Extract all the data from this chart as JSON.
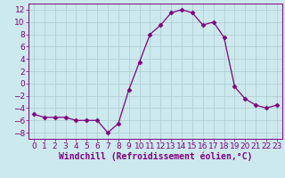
{
  "x": [
    0,
    1,
    2,
    3,
    4,
    5,
    6,
    7,
    8,
    9,
    10,
    11,
    12,
    13,
    14,
    15,
    16,
    17,
    18,
    19,
    20,
    21,
    22,
    23
  ],
  "y": [
    -5,
    -5.5,
    -5.5,
    -5.5,
    -6,
    -6,
    -6,
    -8,
    -6.5,
    -1,
    3.5,
    8,
    9.5,
    11.5,
    12,
    11.5,
    9.5,
    10,
    7.5,
    -0.5,
    -2.5,
    -3.5,
    -4,
    -3.5
  ],
  "line_color": "#800080",
  "marker": "D",
  "marker_size": 2.5,
  "bg_color": "#cce9ed",
  "grid_color": "#aacccc",
  "xlabel": "Windchill (Refroidissement éolien,°C)",
  "xlabel_fontsize": 7,
  "tick_fontsize": 6.5,
  "ylim": [
    -9,
    13
  ],
  "xlim": [
    -0.5,
    23.5
  ],
  "yticks": [
    -8,
    -6,
    -4,
    -2,
    0,
    2,
    4,
    6,
    8,
    10,
    12
  ],
  "xticks": [
    0,
    1,
    2,
    3,
    4,
    5,
    6,
    7,
    8,
    9,
    10,
    11,
    12,
    13,
    14,
    15,
    16,
    17,
    18,
    19,
    20,
    21,
    22,
    23
  ]
}
